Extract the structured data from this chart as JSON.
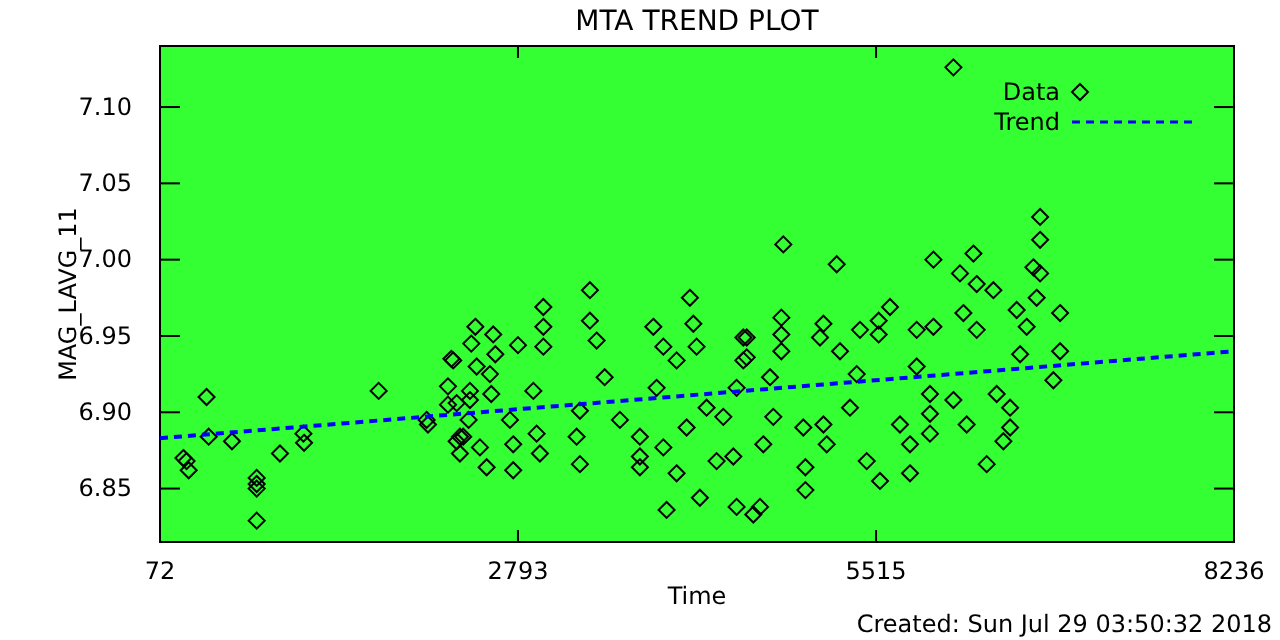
{
  "chart_data": {
    "type": "scatter",
    "title": "MTA TREND PLOT",
    "xlabel": "Time",
    "ylabel": "MAG_LAVG_11",
    "annotations": [
      "Created: Sun Jul 29 03:50:32 2018"
    ],
    "xlim": [
      72,
      8236
    ],
    "xticks": [
      72,
      2793,
      5515,
      8236
    ],
    "ylim": [
      6.815,
      7.14
    ],
    "yticks": [
      6.85,
      {
        "value": 6.9,
        "label": "6.90"
      },
      6.95,
      {
        "value": 7.0,
        "label": "7.00"
      },
      7.05,
      {
        "value": 7.1,
        "label": "7.10"
      }
    ],
    "grid": false,
    "legend": "top right",
    "series": [
      {
        "name": "Data",
        "type": "scatter",
        "marker": "diamond",
        "color": "#000000",
        "x": [
          250,
          274,
          290,
          426,
          442,
          619,
          807,
          807,
          807,
          807,
          984,
          1162,
          1167,
          1734,
          2099,
          2109,
          2287,
          2261,
          2261,
          2327,
          2301,
          2327,
          2352,
          2352,
          2469,
          2438,
          2479,
          2428,
          2428,
          2418,
          2377,
          2504,
          2555,
          2605,
          2621,
          2580,
          2590,
          2732,
          2757,
          2757,
          2793,
          2910,
          2935,
          2960,
          2986,
          2986,
          2986,
          3264,
          3239,
          3264,
          3340,
          3340,
          3391,
          3452,
          3568,
          3720,
          3720,
          3720,
          3847,
          3822,
          3898,
          3999,
          3898,
          3999,
          3923,
          4075,
          4100,
          4126,
          4151,
          4176,
          4227,
          4354,
          4303,
          4430,
          4455,
          4506,
          4506,
          4455,
          4532,
          4532,
          4633,
          4582,
          4709,
          4658,
          4810,
          4795,
          4795,
          4795,
          4734,
          4962,
          4978,
          4978,
          5089,
          5115,
          5216,
          5115,
          5140,
          5241,
          5317,
          5368,
          5393,
          5444,
          5535,
          5535,
          5621,
          5545,
          5697,
          5773,
          5773,
          5824,
          5951,
          5951,
          5824,
          5925,
          5925,
          5925,
          6153,
          6255,
          6280,
          6280,
          6179,
          6103,
          6204,
          6356,
          6407,
          6432,
          6483,
          6534,
          6584,
          6610,
          6711,
          6762,
          6762,
          6762,
          6736,
          6660,
          6914,
          6914,
          6863,
          6103,
          6534
        ],
        "values": [
          6.87,
          6.868,
          6.862,
          6.91,
          6.884,
          6.881,
          6.857,
          6.853,
          6.85,
          6.829,
          6.873,
          6.886,
          6.88,
          6.914,
          6.895,
          6.892,
          6.935,
          6.917,
          6.905,
          6.881,
          6.934,
          6.906,
          6.884,
          6.873,
          6.956,
          6.945,
          6.93,
          6.914,
          6.908,
          6.895,
          6.884,
          6.877,
          6.864,
          6.951,
          6.938,
          6.925,
          6.912,
          6.895,
          6.879,
          6.862,
          6.944,
          6.914,
          6.886,
          6.873,
          6.969,
          6.956,
          6.943,
          6.901,
          6.884,
          6.866,
          6.98,
          6.96,
          6.947,
          6.923,
          6.895,
          6.884,
          6.871,
          6.864,
          6.916,
          6.956,
          6.943,
          6.934,
          6.877,
          6.86,
          6.836,
          6.89,
          6.975,
          6.958,
          6.943,
          6.844,
          6.903,
          6.897,
          6.868,
          6.871,
          6.838,
          6.949,
          6.934,
          6.916,
          6.949,
          6.936,
          6.838,
          6.833,
          6.923,
          6.879,
          7.01,
          6.962,
          6.951,
          6.94,
          6.897,
          6.89,
          6.864,
          6.849,
          6.949,
          6.958,
          6.997,
          6.892,
          6.879,
          6.94,
          6.903,
          6.925,
          6.954,
          6.868,
          6.96,
          6.951,
          6.969,
          6.855,
          6.892,
          6.879,
          6.86,
          6.954,
          6.956,
          7.0,
          6.93,
          6.912,
          6.899,
          6.886,
          6.991,
          7.004,
          6.984,
          6.954,
          6.965,
          6.908,
          6.892,
          6.866,
          6.98,
          6.912,
          6.881,
          6.903,
          6.967,
          6.938,
          6.995,
          7.028,
          7.013,
          6.991,
          6.975,
          6.956,
          6.965,
          6.94,
          6.921,
          7.126,
          6.89
        ]
      },
      {
        "name": "Trend",
        "type": "line",
        "marker": "none",
        "line_style": "dashed",
        "color": "#0000ff",
        "x": [
          72,
          8236
        ],
        "values": [
          6.883,
          6.94
        ]
      }
    ]
  }
}
